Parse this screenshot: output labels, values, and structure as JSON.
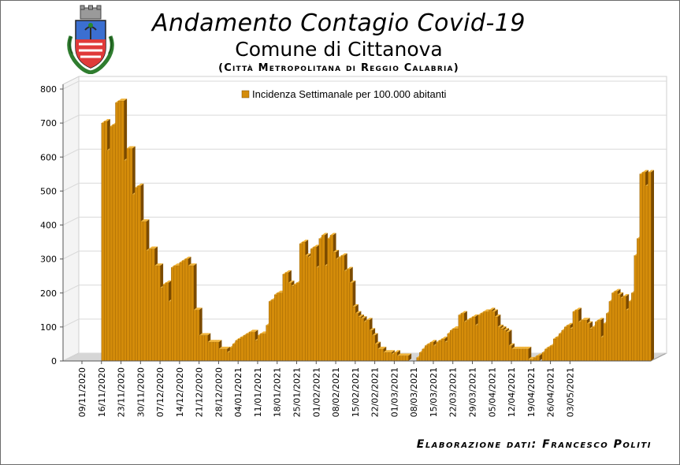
{
  "header": {
    "title": "Andamento Contagio Covid-19",
    "subtitle": "Comune di Cittanova",
    "subtitle2": "(Città Metropolitana di Reggio Calabria)",
    "crest_icon": "municipal-coat-of-arms"
  },
  "footer": {
    "credit": "Elaborazione dati: Francesco Politi"
  },
  "colors": {
    "bar": "#d48c0a",
    "bar_top": "#f2b53a",
    "bar_side": "#7a4a00",
    "grid": "#d9d9d9",
    "axis": "#555555"
  },
  "chart_data": {
    "type": "bar",
    "title": "Andamento Contagio Covid-19",
    "xlabel": "",
    "ylabel": "",
    "ylim": [
      0,
      800
    ],
    "yticks": [
      0,
      100,
      200,
      300,
      400,
      500,
      600,
      700,
      800
    ],
    "grid": true,
    "legend_position": "top-center",
    "x_start": "09/11/2020",
    "x_tick_labels": [
      "09/11/2020",
      "16/11/2020",
      "23/11/2020",
      "30/11/2020",
      "07/12/2020",
      "14/12/2020",
      "21/12/2020",
      "28/12/2020",
      "04/01/2021",
      "11/01/2021",
      "18/01/2021",
      "25/01/2021",
      "01/02/2021",
      "08/02/2021",
      "15/02/2021",
      "22/02/2021",
      "01/03/2021",
      "08/03/2021",
      "15/03/2021",
      "22/03/2021",
      "29/03/2021",
      "05/04/2021",
      "12/04/2021",
      "19/04/2021",
      "26/04/2021",
      "03/05/2021"
    ],
    "series": [
      {
        "name": "Incidenza Settimanale per 100.000 abitanti",
        "values": [
          0,
          0,
          0,
          0,
          0,
          0,
          0,
          700,
          705,
          620,
          690,
          695,
          760,
          765,
          765,
          590,
          625,
          625,
          490,
          510,
          515,
          410,
          410,
          325,
          330,
          330,
          280,
          280,
          215,
          225,
          230,
          175,
          275,
          280,
          280,
          290,
          295,
          300,
          280,
          280,
          150,
          150,
          75,
          75,
          75,
          55,
          55,
          55,
          55,
          35,
          35,
          35,
          25,
          40,
          50,
          60,
          65,
          70,
          75,
          80,
          85,
          85,
          60,
          75,
          80,
          80,
          105,
          175,
          180,
          195,
          200,
          200,
          255,
          260,
          230,
          220,
          225,
          230,
          345,
          350,
          310,
          305,
          330,
          335,
          275,
          360,
          370,
          280,
          360,
          370,
          320,
          300,
          305,
          310,
          265,
          270,
          230,
          160,
          140,
          130,
          125,
          115,
          120,
          90,
          75,
          50,
          35,
          35,
          25,
          25,
          25,
          20,
          25,
          15,
          15,
          15,
          15,
          0,
          0,
          0,
          10,
          25,
          35,
          45,
          50,
          55,
          45,
          55,
          60,
          65,
          55,
          80,
          90,
          95,
          95,
          135,
          140,
          115,
          120,
          125,
          130,
          105,
          135,
          140,
          145,
          145,
          150,
          145,
          130,
          100,
          95,
          90,
          85,
          45,
          35,
          35,
          35,
          35,
          35,
          35,
          5,
          5,
          10,
          15,
          0,
          25,
          35,
          40,
          45,
          65,
          70,
          80,
          90,
          100,
          105,
          95,
          145,
          150,
          115,
          120,
          120,
          110,
          95,
          100,
          115,
          120,
          70,
          110,
          140,
          175,
          200,
          205,
          195,
          185,
          190,
          150,
          175,
          200,
          310,
          360,
          550,
          555,
          515,
          555
        ]
      }
    ]
  }
}
